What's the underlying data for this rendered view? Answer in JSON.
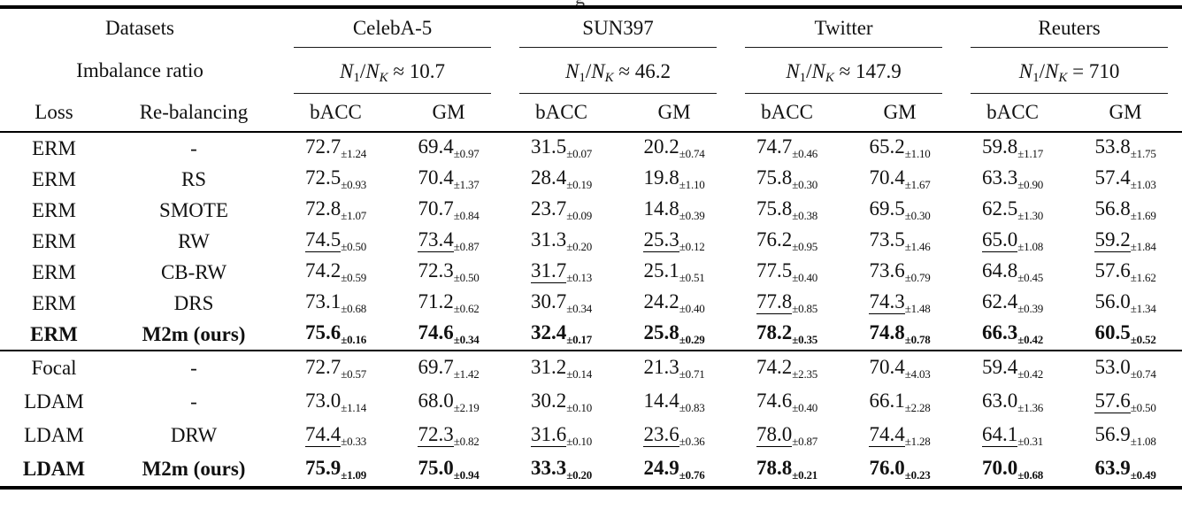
{
  "caption_fragment": "g",
  "pm_symbol": "±",
  "table": {
    "corner": {
      "datasets_label": "Datasets",
      "imbalance_label": "Imbalance ratio",
      "loss_label": "Loss",
      "rebalancing_label": "Re-balancing"
    },
    "ratio_tokens": {
      "n": "N",
      "sub_1": "1",
      "slash": "/",
      "n2": "N",
      "sub_k": "K"
    },
    "metric_labels": [
      "bACC",
      "GM"
    ],
    "groups": [
      {
        "name": "CelebA-5",
        "ratio": "≈ 10.7"
      },
      {
        "name": "SUN397",
        "ratio": "≈ 46.2"
      },
      {
        "name": "Twitter",
        "ratio": "≈ 147.9"
      },
      {
        "name": "Reuters",
        "ratio": "= 710"
      }
    ],
    "blocks": [
      {
        "rows": [
          {
            "loss": "ERM",
            "rebalancing": "-",
            "bold": false,
            "cells": [
              {
                "v": "72.7",
                "e": "1.24"
              },
              {
                "v": "69.4",
                "e": "0.97"
              },
              {
                "v": "31.5",
                "e": "0.07"
              },
              {
                "v": "20.2",
                "e": "0.74"
              },
              {
                "v": "74.7",
                "e": "0.46"
              },
              {
                "v": "65.2",
                "e": "1.10"
              },
              {
                "v": "59.8",
                "e": "1.17"
              },
              {
                "v": "53.8",
                "e": "1.75"
              }
            ]
          },
          {
            "loss": "ERM",
            "rebalancing": "RS",
            "bold": false,
            "cells": [
              {
                "v": "72.5",
                "e": "0.93"
              },
              {
                "v": "70.4",
                "e": "1.37"
              },
              {
                "v": "28.4",
                "e": "0.19"
              },
              {
                "v": "19.8",
                "e": "1.10"
              },
              {
                "v": "75.8",
                "e": "0.30"
              },
              {
                "v": "70.4",
                "e": "1.67"
              },
              {
                "v": "63.3",
                "e": "0.90"
              },
              {
                "v": "57.4",
                "e": "1.03"
              }
            ]
          },
          {
            "loss": "ERM",
            "rebalancing": "SMOTE",
            "bold": false,
            "cells": [
              {
                "v": "72.8",
                "e": "1.07"
              },
              {
                "v": "70.7",
                "e": "0.84"
              },
              {
                "v": "23.7",
                "e": "0.09"
              },
              {
                "v": "14.8",
                "e": "0.39"
              },
              {
                "v": "75.8",
                "e": "0.38"
              },
              {
                "v": "69.5",
                "e": "0.30"
              },
              {
                "v": "62.5",
                "e": "1.30"
              },
              {
                "v": "56.8",
                "e": "1.69"
              }
            ]
          },
          {
            "loss": "ERM",
            "rebalancing": "RW",
            "bold": false,
            "cells": [
              {
                "v": "74.5",
                "e": "0.50",
                "u": true
              },
              {
                "v": "73.4",
                "e": "0.87",
                "u": true
              },
              {
                "v": "31.3",
                "e": "0.20"
              },
              {
                "v": "25.3",
                "e": "0.12",
                "u": true
              },
              {
                "v": "76.2",
                "e": "0.95"
              },
              {
                "v": "73.5",
                "e": "1.46"
              },
              {
                "v": "65.0",
                "e": "1.08",
                "u": true
              },
              {
                "v": "59.2",
                "e": "1.84",
                "u": true
              }
            ]
          },
          {
            "loss": "ERM",
            "rebalancing": "CB-RW",
            "bold": false,
            "cells": [
              {
                "v": "74.2",
                "e": "0.59"
              },
              {
                "v": "72.3",
                "e": "0.50"
              },
              {
                "v": "31.7",
                "e": "0.13",
                "u": true
              },
              {
                "v": "25.1",
                "e": "0.51"
              },
              {
                "v": "77.5",
                "e": "0.40"
              },
              {
                "v": "73.6",
                "e": "0.79"
              },
              {
                "v": "64.8",
                "e": "0.45"
              },
              {
                "v": "57.6",
                "e": "1.62"
              }
            ]
          },
          {
            "loss": "ERM",
            "rebalancing": "DRS",
            "bold": false,
            "cells": [
              {
                "v": "73.1",
                "e": "0.68"
              },
              {
                "v": "71.2",
                "e": "0.62"
              },
              {
                "v": "30.7",
                "e": "0.34"
              },
              {
                "v": "24.2",
                "e": "0.40"
              },
              {
                "v": "77.8",
                "e": "0.85",
                "u": true
              },
              {
                "v": "74.3",
                "e": "1.48",
                "u": true
              },
              {
                "v": "62.4",
                "e": "0.39"
              },
              {
                "v": "56.0",
                "e": "1.34"
              }
            ]
          },
          {
            "loss": "ERM",
            "rebalancing": "M2m (ours)",
            "bold": true,
            "cells": [
              {
                "v": "75.6",
                "e": "0.16"
              },
              {
                "v": "74.6",
                "e": "0.34"
              },
              {
                "v": "32.4",
                "e": "0.17"
              },
              {
                "v": "25.8",
                "e": "0.29"
              },
              {
                "v": "78.2",
                "e": "0.35"
              },
              {
                "v": "74.8",
                "e": "0.78"
              },
              {
                "v": "66.3",
                "e": "0.42"
              },
              {
                "v": "60.5",
                "e": "0.52"
              }
            ]
          }
        ]
      },
      {
        "rows": [
          {
            "loss": "Focal",
            "rebalancing": "-",
            "bold": false,
            "cells": [
              {
                "v": "72.7",
                "e": "0.57"
              },
              {
                "v": "69.7",
                "e": "1.42"
              },
              {
                "v": "31.2",
                "e": "0.14"
              },
              {
                "v": "21.3",
                "e": "0.71"
              },
              {
                "v": "74.2",
                "e": "2.35"
              },
              {
                "v": "70.4",
                "e": "4.03"
              },
              {
                "v": "59.4",
                "e": "0.42"
              },
              {
                "v": "53.0",
                "e": "0.74"
              }
            ]
          },
          {
            "loss": "LDAM",
            "rebalancing": "-",
            "bold": false,
            "cells": [
              {
                "v": "73.0",
                "e": "1.14"
              },
              {
                "v": "68.0",
                "e": "2.19"
              },
              {
                "v": "30.2",
                "e": "0.10"
              },
              {
                "v": "14.4",
                "e": "0.83"
              },
              {
                "v": "74.6",
                "e": "0.40"
              },
              {
                "v": "66.1",
                "e": "2.28"
              },
              {
                "v": "63.0",
                "e": "1.36"
              },
              {
                "v": "57.6",
                "e": "0.50",
                "u": true
              }
            ]
          },
          {
            "loss": "LDAM",
            "rebalancing": "DRW",
            "bold": false,
            "cells": [
              {
                "v": "74.4",
                "e": "0.33",
                "u": true
              },
              {
                "v": "72.3",
                "e": "0.82",
                "u": true
              },
              {
                "v": "31.6",
                "e": "0.10",
                "u": true
              },
              {
                "v": "23.6",
                "e": "0.36",
                "u": true
              },
              {
                "v": "78.0",
                "e": "0.87",
                "u": true
              },
              {
                "v": "74.4",
                "e": "1.28",
                "u": true
              },
              {
                "v": "64.1",
                "e": "0.31",
                "u": true
              },
              {
                "v": "56.9",
                "e": "1.08"
              }
            ]
          },
          {
            "loss": "LDAM",
            "rebalancing": "M2m (ours)",
            "bold": true,
            "cells": [
              {
                "v": "75.9",
                "e": "1.09"
              },
              {
                "v": "75.0",
                "e": "0.94"
              },
              {
                "v": "33.3",
                "e": "0.20"
              },
              {
                "v": "24.9",
                "e": "0.76"
              },
              {
                "v": "78.8",
                "e": "0.21"
              },
              {
                "v": "76.0",
                "e": "0.23"
              },
              {
                "v": "70.0",
                "e": "0.68"
              },
              {
                "v": "63.9",
                "e": "0.49"
              }
            ]
          }
        ]
      }
    ]
  }
}
